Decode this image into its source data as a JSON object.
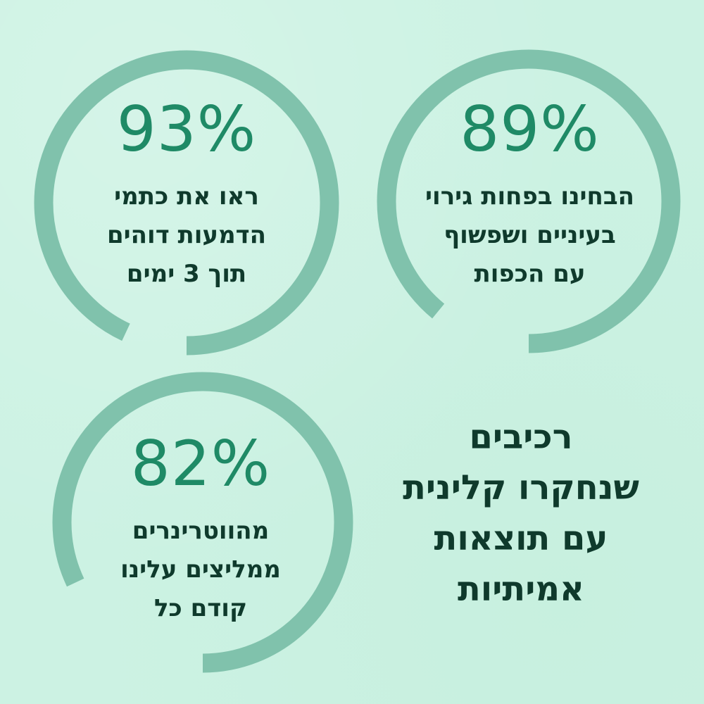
{
  "headline": {
    "lines": [
      "רכיבים",
      "שנחקרו קלינית",
      "עם תוצאות",
      "אמיתיות"
    ]
  },
  "stats": [
    {
      "percent": "93%",
      "value": 0.93,
      "caption_lines": [
        "ראו את כתמי",
        "הדמעות דוהים",
        "תוך 3 ימים"
      ]
    },
    {
      "percent": "89%",
      "value": 0.89,
      "caption_lines": [
        "הבחינו בפחות גירוי",
        "בעיניים ושפשוף",
        "עם הכפות"
      ]
    },
    {
      "percent": "82%",
      "value": 0.82,
      "caption_lines": [
        "מהווטרינרים",
        "ממליצים עלינו",
        "קודם כל"
      ]
    }
  ],
  "colors": {
    "background": "#ccf2e3",
    "ring": "#80c2ac",
    "percent_text": "#1f8a66",
    "body_text": "#0f3a2c"
  }
}
